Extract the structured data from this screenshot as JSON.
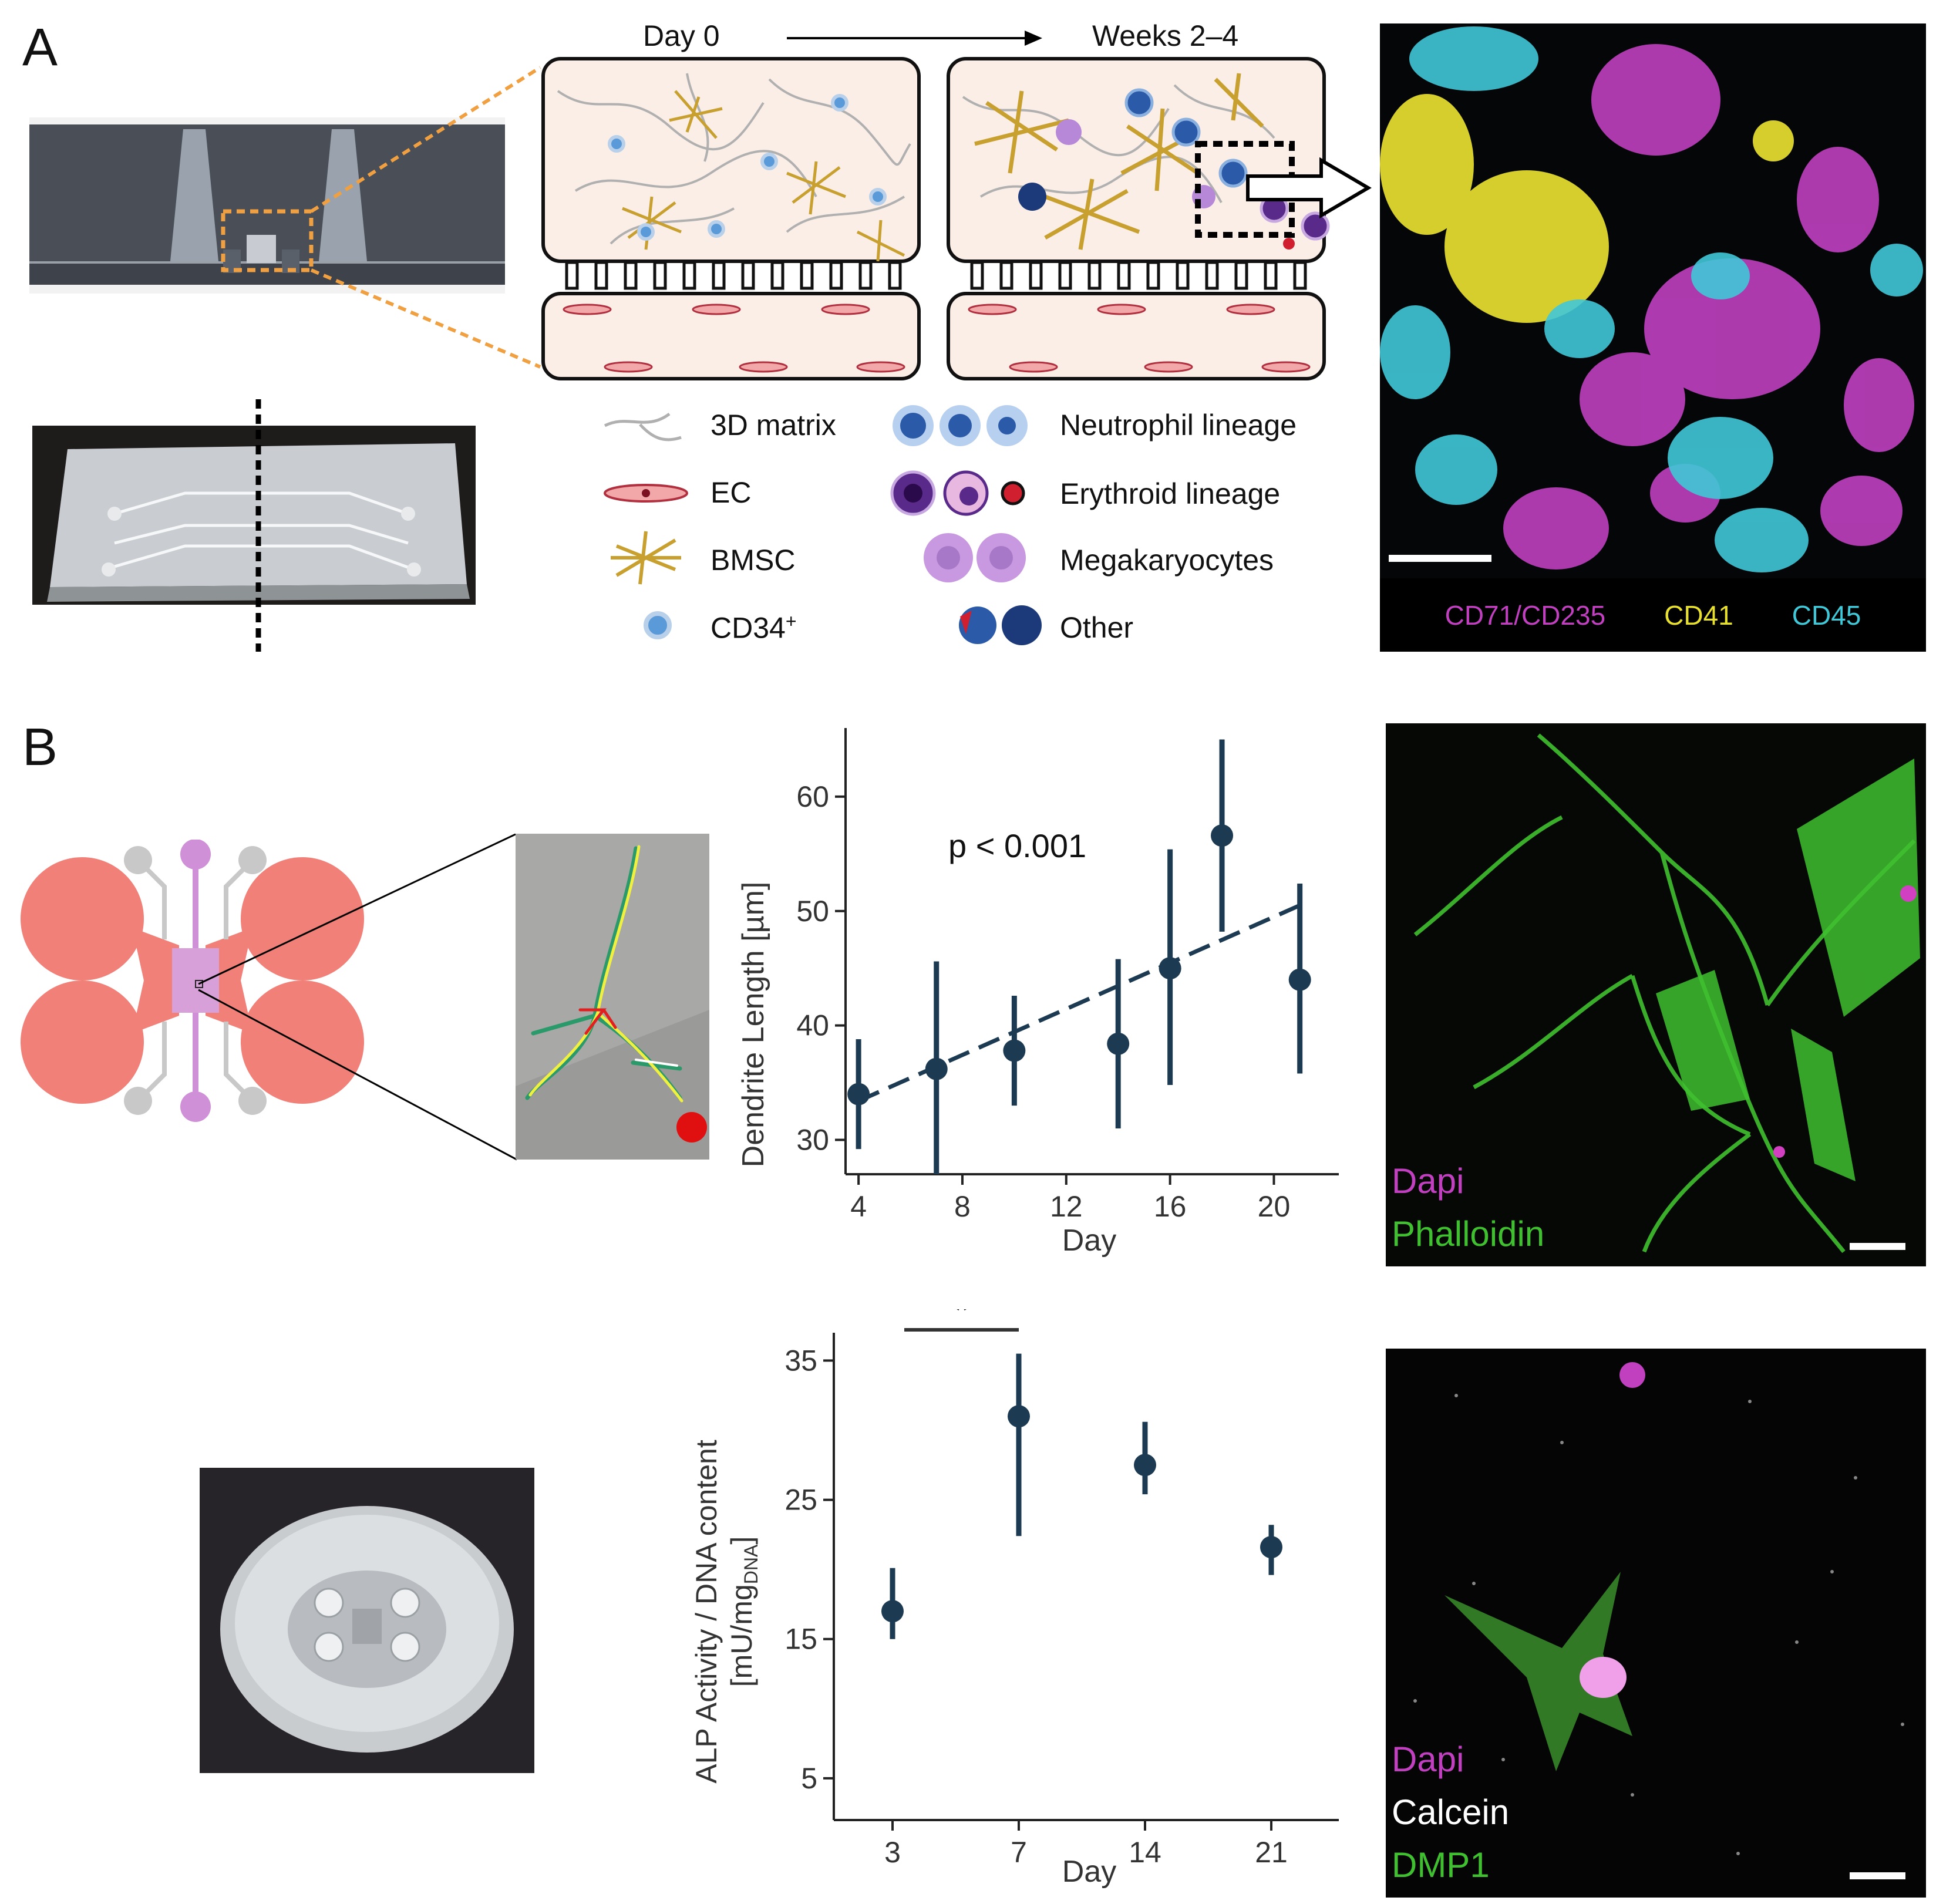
{
  "panels": {
    "a": "A",
    "b": "B"
  },
  "schematic": {
    "day0": "Day 0",
    "weeks": "Weeks 2–4"
  },
  "legend": {
    "matrix": "3D matrix",
    "ec": "EC",
    "bmsc": "BMSC",
    "cd34_base": "CD34",
    "cd34_sup": "+",
    "neutrophil": "Neutrophil lineage",
    "erythroid": "Erythroid lineage",
    "megakaryocytes": "Megakaryocytes",
    "other": "Other"
  },
  "micro_a": {
    "channels": [
      {
        "label": "CD71/CD235",
        "color": "#c040c0"
      },
      {
        "label": "CD41",
        "color": "#e8e030"
      },
      {
        "label": "CD45",
        "color": "#40c8d8"
      }
    ]
  },
  "micro_b1": {
    "channels": [
      {
        "label": "Dapi",
        "color": "#c040c0"
      },
      {
        "label": "Phalloidin",
        "color": "#40c030"
      }
    ]
  },
  "micro_b2": {
    "channels": [
      {
        "label": "Dapi",
        "color": "#c040c0"
      },
      {
        "label": "Calcein",
        "color": "#ffffff"
      },
      {
        "label": "DMP1",
        "color": "#40c030"
      }
    ]
  },
  "colors": {
    "marker": "#1c3a52",
    "ec": "#f08878",
    "bmsc": "#c8a030"
  },
  "chart_data": [
    {
      "type": "scatter",
      "xlabel": "Day",
      "ylabel": "Dendrite Length [µm]",
      "xticks": [
        4,
        8,
        12,
        16,
        20
      ],
      "yticks": [
        30,
        40,
        50,
        60
      ],
      "xlim": [
        3.5,
        22.5
      ],
      "ylim": [
        27,
        66
      ],
      "annotation": "p < 0.001",
      "points": [
        {
          "x": 4,
          "y": 34,
          "lo": 29.2,
          "hi": 38.8
        },
        {
          "x": 7,
          "y": 36.2,
          "lo": 27,
          "hi": 45.6
        },
        {
          "x": 10,
          "y": 37.8,
          "lo": 33,
          "hi": 42.6
        },
        {
          "x": 14,
          "y": 38.4,
          "lo": 31,
          "hi": 45.8
        },
        {
          "x": 16,
          "y": 45,
          "lo": 34.8,
          "hi": 55.4
        },
        {
          "x": 18,
          "y": 56.6,
          "lo": 48.2,
          "hi": 65
        },
        {
          "x": 21,
          "y": 44,
          "lo": 35.8,
          "hi": 52.4
        }
      ],
      "trend": {
        "x": [
          4,
          21
        ],
        "y": [
          33.4,
          50.5
        ]
      }
    },
    {
      "type": "scatter",
      "xlabel": "Day",
      "ylabel_line1": "ALP Activity / DNA content",
      "ylabel_line2_main": "[mU/mg",
      "ylabel_line2_sub": "DNA",
      "ylabel_line2_end": "]",
      "categories": [
        "3",
        "7",
        "14",
        "21"
      ],
      "yticks": [
        5,
        15,
        25,
        35
      ],
      "ylim": [
        2,
        37
      ],
      "significance": {
        "from": "3",
        "to": "7",
        "label": "*"
      },
      "values": [
        17,
        31,
        27.5,
        21.6
      ],
      "lo": [
        15,
        22.4,
        25.4,
        19.6
      ],
      "hi": [
        20.1,
        35.5,
        30.6,
        23.2
      ]
    }
  ]
}
